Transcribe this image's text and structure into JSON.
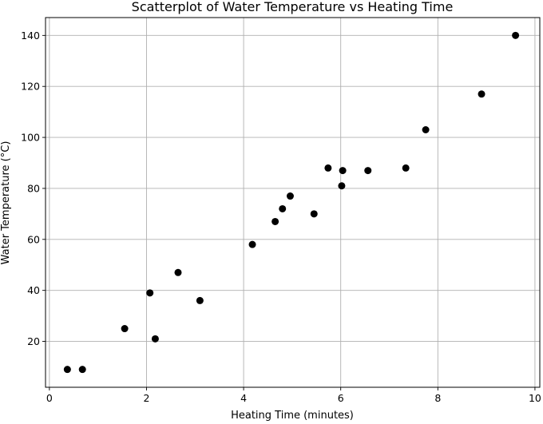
{
  "chart_data": {
    "type": "scatter",
    "title": "Scatterplot of Water Temperature vs Heating Time",
    "xlabel": "Heating Time (minutes)",
    "ylabel": "Water Temperature (°C)",
    "xlim": [
      -0.08,
      10.1
    ],
    "ylim": [
      2,
      147
    ],
    "xticks": [
      0,
      2,
      4,
      6,
      8,
      10
    ],
    "yticks": [
      20,
      40,
      60,
      80,
      100,
      120,
      140
    ],
    "grid": true,
    "legend": "none",
    "marker_color": "#000000",
    "grid_color": "#b0b0b0",
    "points": [
      {
        "x": 0.37,
        "y": 9
      },
      {
        "x": 0.68,
        "y": 9
      },
      {
        "x": 1.55,
        "y": 25
      },
      {
        "x": 2.07,
        "y": 39
      },
      {
        "x": 2.18,
        "y": 21
      },
      {
        "x": 2.65,
        "y": 47
      },
      {
        "x": 3.1,
        "y": 36
      },
      {
        "x": 4.18,
        "y": 58
      },
      {
        "x": 4.65,
        "y": 67
      },
      {
        "x": 4.8,
        "y": 72
      },
      {
        "x": 4.96,
        "y": 77
      },
      {
        "x": 5.45,
        "y": 70
      },
      {
        "x": 5.74,
        "y": 88
      },
      {
        "x": 6.02,
        "y": 81
      },
      {
        "x": 6.04,
        "y": 87
      },
      {
        "x": 6.56,
        "y": 87
      },
      {
        "x": 7.34,
        "y": 88
      },
      {
        "x": 7.75,
        "y": 103
      },
      {
        "x": 8.9,
        "y": 117
      },
      {
        "x": 9.6,
        "y": 140
      }
    ]
  }
}
